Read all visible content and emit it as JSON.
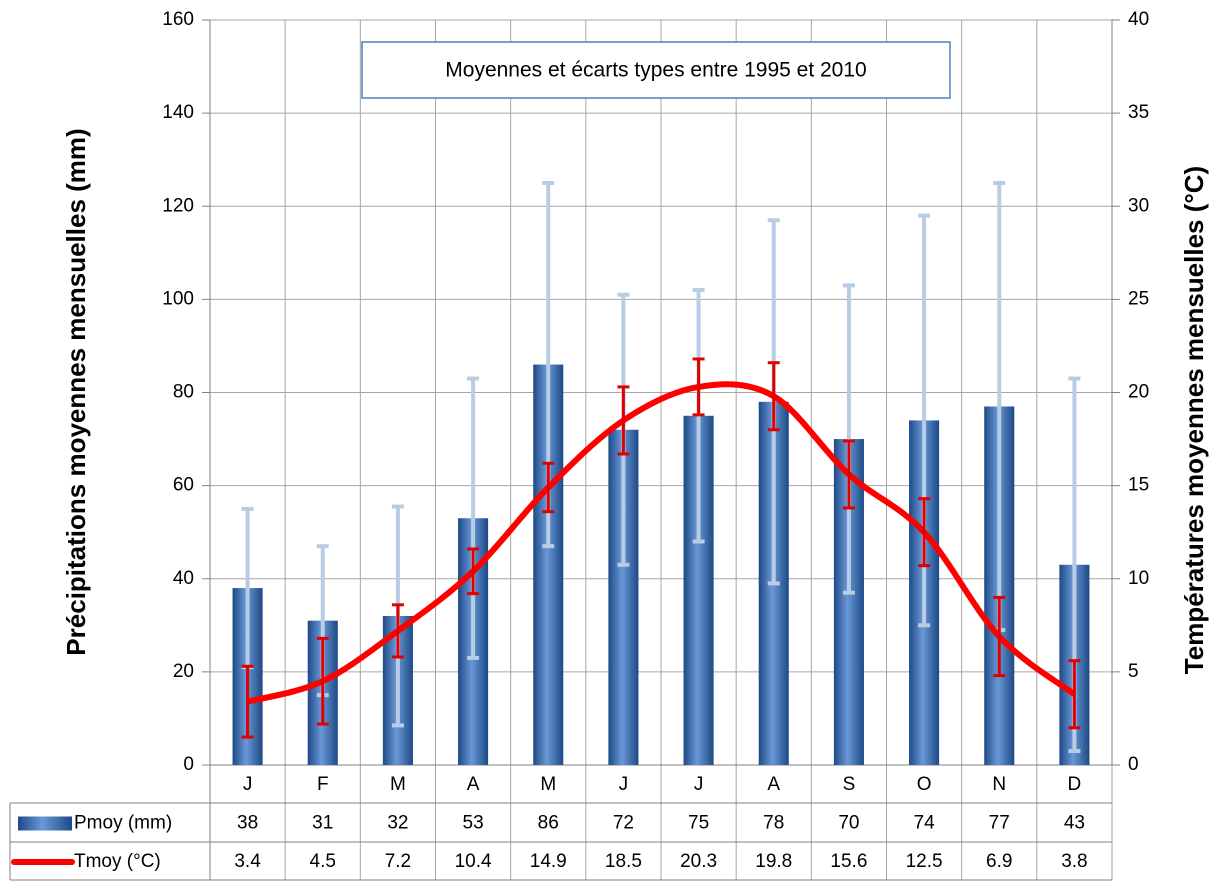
{
  "chart_data": {
    "type": "bar-line",
    "annotation": "Moyennes et écarts types entre 1995 et 2010",
    "y_label": "Précipitations moyennes mensuelles (mm)",
    "y2_label": "Températures moyennes mensuelles (°C)",
    "categories": [
      "J",
      "F",
      "M",
      "A",
      "M",
      "J",
      "J",
      "A",
      "S",
      "O",
      "N",
      "D"
    ],
    "series": [
      {
        "name": "Pmoy (mm)",
        "type": "bar",
        "color": "#3a6db5",
        "error_color": "#b8cce4",
        "values": [
          38,
          31,
          32,
          53,
          86,
          72,
          75,
          78,
          70,
          74,
          77,
          43
        ],
        "errors": [
          17,
          16,
          23.5,
          30,
          39,
          29,
          27,
          39,
          33,
          44,
          48,
          40
        ]
      },
      {
        "name": "Tmoy (°C)",
        "type": "line",
        "axis": "y2",
        "color": "#ff0000",
        "error_color": "#e00000",
        "values": [
          3.4,
          4.5,
          7.2,
          10.4,
          14.9,
          18.5,
          20.3,
          19.8,
          15.6,
          12.5,
          6.9,
          3.8
        ],
        "errors": [
          1.9,
          2.3,
          1.4,
          1.2,
          1.3,
          1.8,
          1.5,
          1.8,
          1.8,
          1.8,
          2.1,
          1.8
        ]
      }
    ],
    "ylim": [
      0,
      160
    ],
    "yticks": [
      0,
      20,
      40,
      60,
      80,
      100,
      120,
      140,
      160
    ],
    "y2lim": [
      0,
      40
    ],
    "y2ticks": [
      0,
      5,
      10,
      15,
      20,
      25,
      30,
      35,
      40
    ],
    "grid": true
  }
}
